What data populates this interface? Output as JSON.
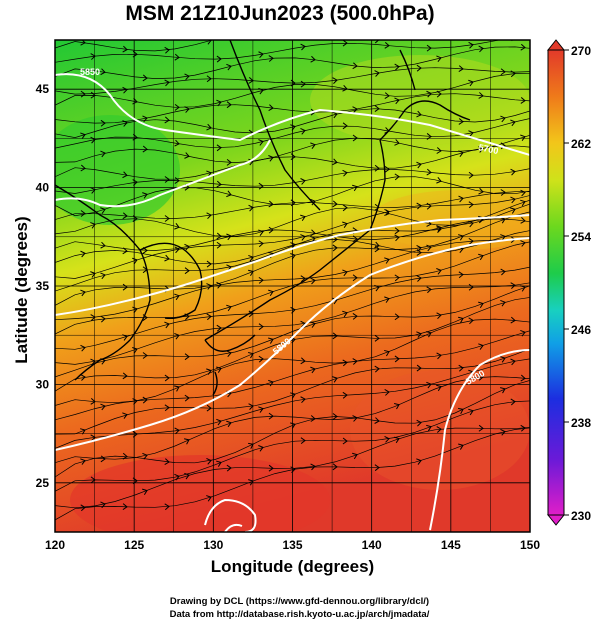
{
  "title": "MSM 21Z10Jun2023 (500.0hPa)",
  "xlabel": "Longitude (degrees)",
  "ylabel": "Latitude  (degrees)",
  "credits": [
    "Drawing by DCL (https://www.gfd-dennou.org/library/dcl/)",
    "Data from http://database.rish.kyoto-u.ac.jp/arch/jmadata/"
  ],
  "map": {
    "lon_range": [
      120,
      150
    ],
    "lat_range": [
      22.5,
      47.5
    ],
    "lon_ticks": [
      "120",
      "125",
      "130",
      "135",
      "140",
      "145",
      "150"
    ],
    "lat_ticks": [
      "25",
      "30",
      "35",
      "40",
      "45"
    ],
    "contour_labels": [
      "5700",
      "5800",
      "5800",
      "5850"
    ],
    "field": "temperature shading (K) with wind streamlines and geopotential height contours",
    "colors": {
      "green": "#2ecc2e",
      "yellow": "#d6e21a",
      "orange": "#ef7a1a",
      "red": "#e23a2a",
      "contour": "#ffffff",
      "coast": "#000000"
    }
  },
  "colorbar": {
    "ticks": [
      "270",
      "262",
      "254",
      "246",
      "238",
      "230"
    ],
    "min": 230,
    "max": 270,
    "stops": [
      "#e01ec8",
      "#6a1ad8",
      "#1c2ee0",
      "#10a0e6",
      "#18d0c0",
      "#1ecc4a",
      "#6cd81e",
      "#cfe21a",
      "#f2c61a",
      "#ef7a1a",
      "#e23a2a"
    ]
  }
}
